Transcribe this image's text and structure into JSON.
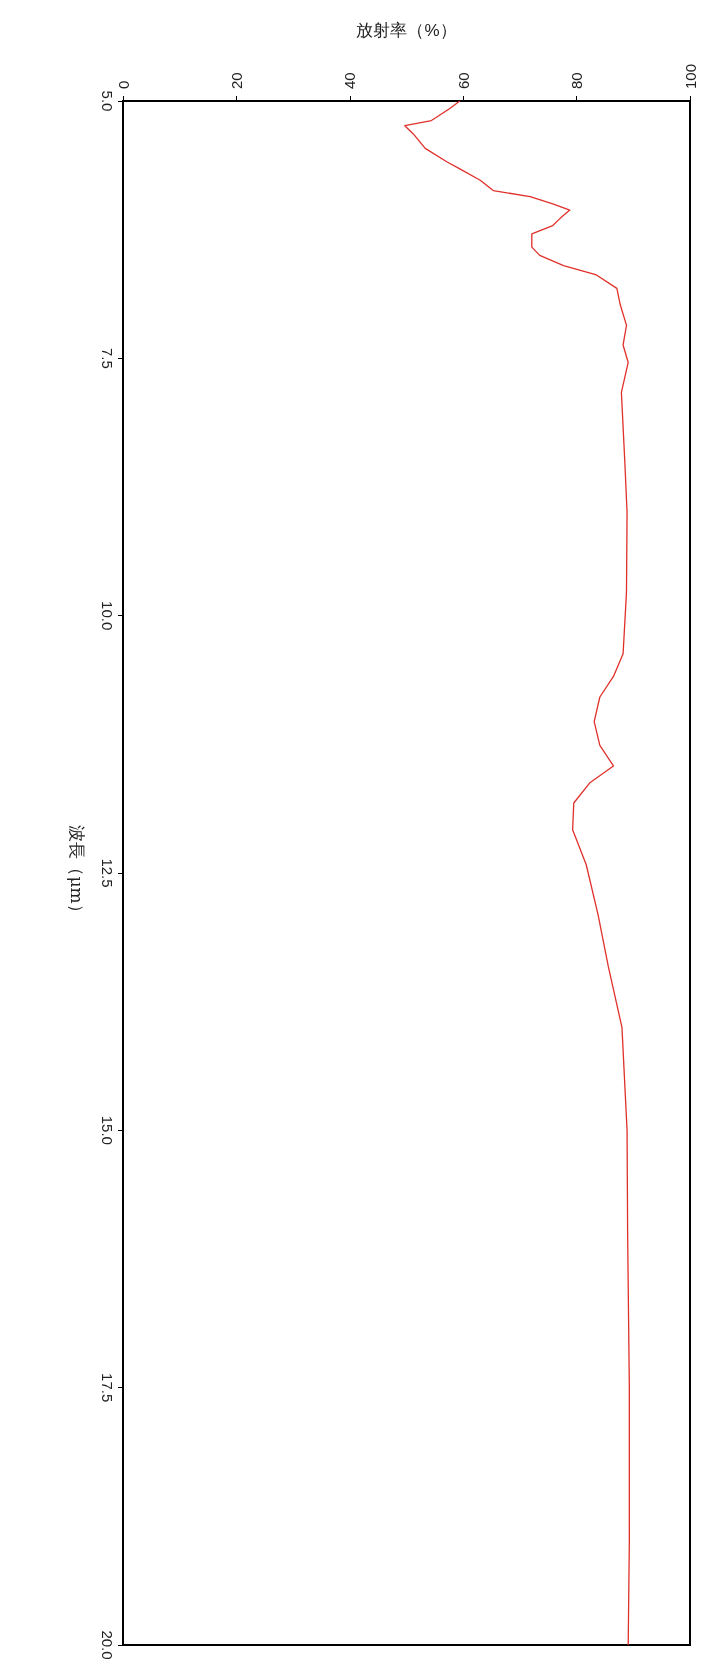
{
  "chart_data": {
    "type": "line",
    "xlabel": "放射率（%）",
    "ylabel": "波長（μm）",
    "x": [
      59.4,
      57.7,
      54.4,
      49.7,
      51.2,
      53.3,
      57.1,
      59.4,
      63.0,
      65.3,
      71.8,
      75.8,
      78.8,
      77.1,
      75.8,
      72.1,
      72.1,
      73.5,
      77.7,
      83.5,
      87.1,
      87.7,
      88.8,
      88.2,
      89.1,
      87.9,
      88.5,
      88.9,
      88.8,
      88.2,
      86.5,
      84.1,
      83.1,
      84.1,
      86.5,
      82.4,
      79.5,
      79.3,
      81.7,
      83.8,
      85.6,
      88.0,
      88.9,
      89.0,
      89.3,
      89.3,
      89.1
    ],
    "series": [
      {
        "color": "#e0302a",
        "values": [
          5.0,
          5.07,
          5.19,
          5.24,
          5.32,
          5.46,
          5.59,
          5.66,
          5.77,
          5.87,
          5.93,
          6.0,
          6.06,
          6.14,
          6.21,
          6.29,
          6.42,
          6.5,
          6.6,
          6.69,
          6.82,
          6.98,
          7.18,
          7.37,
          7.54,
          7.83,
          8.5,
          9.0,
          9.77,
          10.37,
          10.59,
          10.79,
          11.03,
          11.26,
          11.46,
          11.62,
          11.82,
          12.08,
          12.42,
          12.91,
          13.41,
          14.0,
          15.0,
          16.0,
          17.5,
          19.0,
          20.0
        ]
      }
    ],
    "xlim": [
      0,
      100
    ],
    "xticks": [
      0,
      20,
      40,
      60,
      80,
      100
    ],
    "ylim": [
      20.0,
      5.0
    ],
    "yticks": [
      {
        "value": 5,
        "label": "5.0"
      },
      {
        "value": 7.5,
        "label": "7.5"
      },
      {
        "value": 10,
        "label": "10.0"
      },
      {
        "value": 12.5,
        "label": "12.5"
      },
      {
        "value": 15,
        "label": "15.0"
      },
      {
        "value": 17.5,
        "label": "17.5"
      },
      {
        "value": 20,
        "label": "20.0"
      }
    ],
    "grid": false,
    "marker": "none",
    "line_style": "solid"
  }
}
